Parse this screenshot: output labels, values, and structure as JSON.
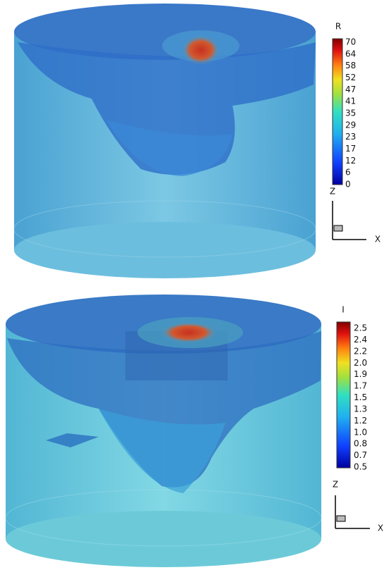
{
  "panels": [
    {
      "legend": {
        "title": "R",
        "labels": [
          "70",
          "64",
          "58",
          "52",
          "47",
          "41",
          "35",
          "29",
          "23",
          "17",
          "12",
          "6",
          "0"
        ]
      },
      "axes": {
        "vertical": "Z",
        "horizontal": "X"
      }
    },
    {
      "legend": {
        "title": "I",
        "labels": [
          "2.5",
          "2.4",
          "2.2",
          "2.0",
          "1.9",
          "1.7",
          "1.5",
          "1.3",
          "1.2",
          "1.0",
          "0.8",
          "0.7",
          "0.5"
        ]
      },
      "axes": {
        "vertical": "Z",
        "horizontal": "X"
      }
    }
  ]
}
